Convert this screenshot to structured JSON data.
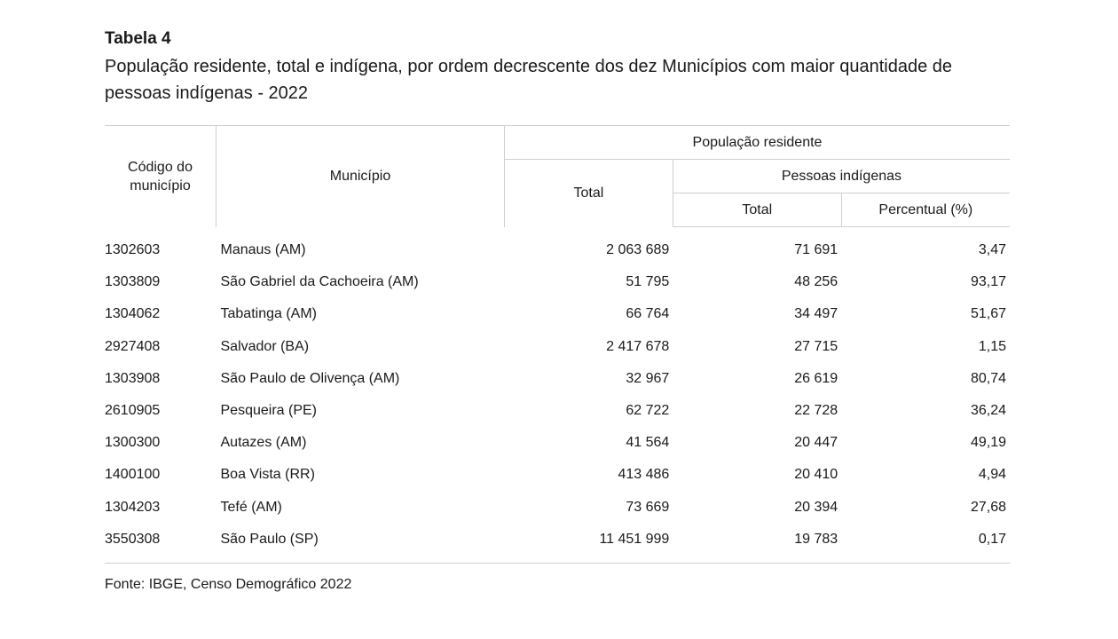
{
  "table": {
    "number": "Tabela 4",
    "title": "População residente, total e indígena, por ordem decrescente dos dez Municípios com maior quantidade de pessoas indígenas - 2022",
    "headers": {
      "code": "Código do município",
      "municipality": "Município",
      "resident_population": "População residente",
      "total": "Total",
      "indigenous": "Pessoas indígenas",
      "indigenous_total": "Total",
      "percentage": "Percentual (%)"
    },
    "rows": [
      {
        "code": "1302603",
        "municipality": "Manaus (AM)",
        "total": "2 063 689",
        "indigenous_total": "71 691",
        "percentage": "3,47"
      },
      {
        "code": "1303809",
        "municipality": "São Gabriel da Cachoeira (AM)",
        "total": "51 795",
        "indigenous_total": "48 256",
        "percentage": "93,17"
      },
      {
        "code": "1304062",
        "municipality": "Tabatinga (AM)",
        "total": "66 764",
        "indigenous_total": "34 497",
        "percentage": "51,67"
      },
      {
        "code": "2927408",
        "municipality": "Salvador (BA)",
        "total": "2 417 678",
        "indigenous_total": "27 715",
        "percentage": "1,15"
      },
      {
        "code": "1303908",
        "municipality": "São Paulo de Olivença (AM)",
        "total": "32 967",
        "indigenous_total": "26 619",
        "percentage": "80,74"
      },
      {
        "code": "2610905",
        "municipality": "Pesqueira (PE)",
        "total": "62 722",
        "indigenous_total": "22 728",
        "percentage": "36,24"
      },
      {
        "code": "1300300",
        "municipality": "Autazes (AM)",
        "total": "41 564",
        "indigenous_total": "20 447",
        "percentage": "49,19"
      },
      {
        "code": "1400100",
        "municipality": "Boa Vista (RR)",
        "total": "413 486",
        "indigenous_total": "20 410",
        "percentage": "4,94"
      },
      {
        "code": "1304203",
        "municipality": "Tefé (AM)",
        "total": "73 669",
        "indigenous_total": "20 394",
        "percentage": "27,68"
      },
      {
        "code": "3550308",
        "municipality": "São Paulo (SP)",
        "total": "11 451 999",
        "indigenous_total": "19 783",
        "percentage": "0,17"
      }
    ],
    "source": "Fonte: IBGE, Censo Demográfico 2022"
  },
  "colors": {
    "text": "#1a1a1a",
    "rule": "#cfcfcf",
    "background": "#ffffff"
  }
}
